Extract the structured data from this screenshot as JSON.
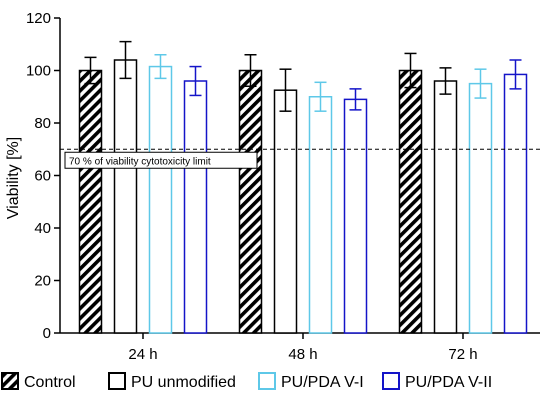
{
  "chart_data": {
    "type": "bar",
    "categories": [
      "24 h",
      "48 h",
      "72 h"
    ],
    "ylabel": "Viability [%]",
    "ylim": [
      0,
      120
    ],
    "yticks": [
      0,
      20,
      40,
      60,
      80,
      100,
      120
    ],
    "grid": false,
    "legend_position": "bottom",
    "series": [
      {
        "name": "Control",
        "values": [
          100,
          100,
          100
        ],
        "errors": [
          5,
          6,
          6.5
        ],
        "color": "#000000",
        "fill": "hatched"
      },
      {
        "name": "PU unmodified",
        "values": [
          104,
          92.5,
          96
        ],
        "errors": [
          7,
          8,
          5
        ],
        "color": "#000000",
        "fill": "none"
      },
      {
        "name": "PU/PDA V-I",
        "values": [
          101.5,
          90,
          95
        ],
        "errors": [
          4.5,
          5.5,
          5.5
        ],
        "color": "#5ec8e8",
        "fill": "none"
      },
      {
        "name": "PU/PDA V-II",
        "values": [
          96,
          89,
          98.5
        ],
        "errors": [
          5.5,
          4,
          5.5
        ],
        "color": "#1414c8",
        "fill": "none"
      }
    ],
    "reference_line": {
      "value": 70,
      "label": "70 % of viability cytotoxicity limit",
      "style": "dashed"
    }
  }
}
